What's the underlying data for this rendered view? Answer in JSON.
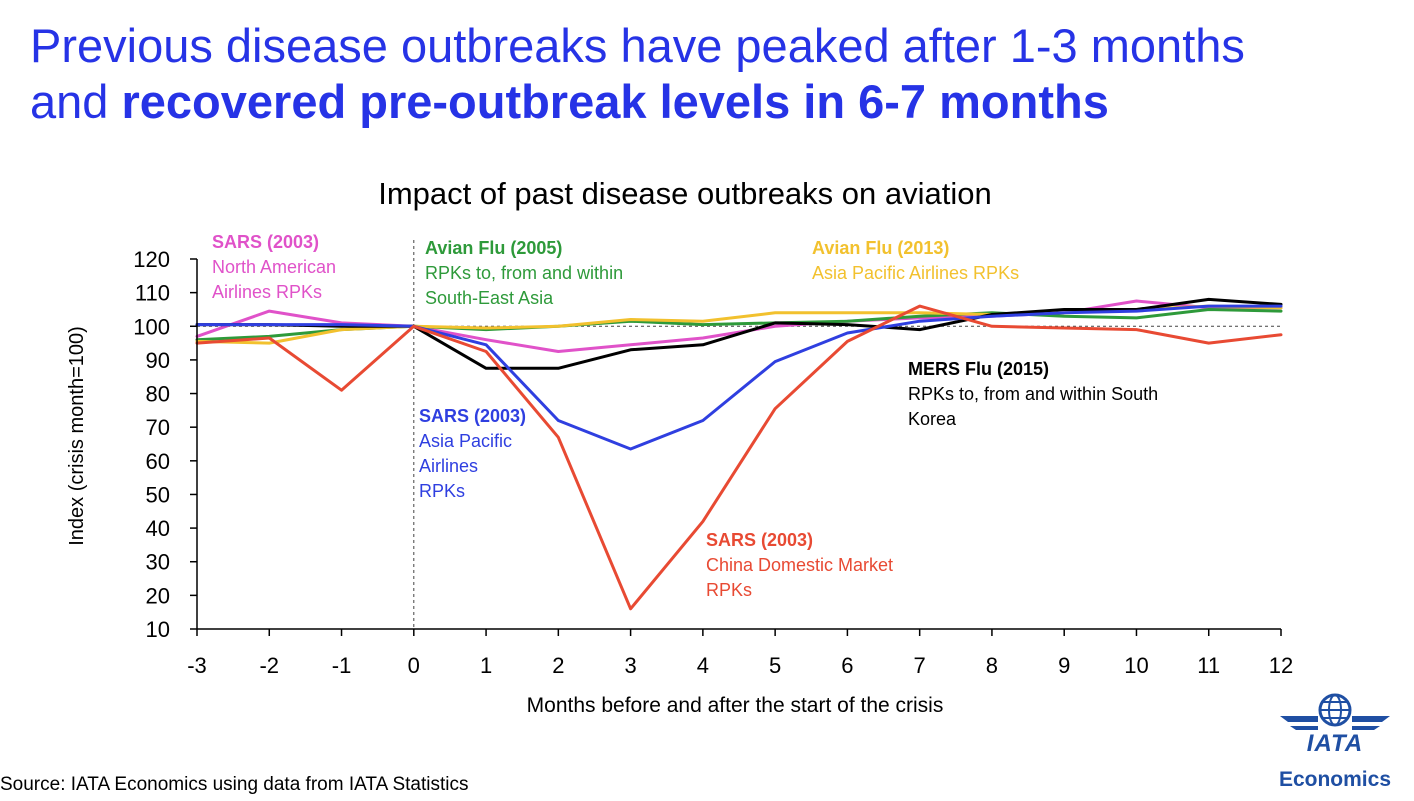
{
  "headline": {
    "line1": "Previous disease outbreaks have peaked after 1-3 months",
    "line2_prefix": "and ",
    "line2_bold": "recovered pre-outbreak levels in 6-7 months"
  },
  "source": "Source: IATA Economics using data from IATA Statistics",
  "logo": {
    "text": "IATA",
    "subtext": "Economics",
    "icon": "globe-wings-icon",
    "color": "#1f4fa3"
  },
  "chart_data": {
    "type": "line",
    "title": "Impact of past disease outbreaks on aviation",
    "xlabel": "Months before and after the start of the crisis",
    "ylabel": "Index (crisis month=100)",
    "xlim": [
      -3,
      12
    ],
    "ylim": [
      10,
      120
    ],
    "xticks": [
      -3,
      -2,
      -1,
      0,
      1,
      2,
      3,
      4,
      5,
      6,
      7,
      8,
      9,
      10,
      11,
      12
    ],
    "yticks": [
      10,
      20,
      30,
      40,
      50,
      60,
      70,
      80,
      90,
      100,
      110,
      120
    ],
    "reference_lines": {
      "vertical_x": 0,
      "horizontal_y": 100,
      "style": "dashed"
    },
    "grid": false,
    "x": [
      -3,
      -2,
      -1,
      0,
      1,
      2,
      3,
      4,
      5,
      6,
      7,
      8,
      9,
      10,
      11,
      12
    ],
    "series": [
      {
        "name": "SARS (2003)",
        "sublabel": "North American Airlines RPKs",
        "color": "#e052c9",
        "values": [
          97,
          104.5,
          101,
          100,
          96,
          92.5,
          94.5,
          96.5,
          100,
          101.5,
          102.5,
          103,
          104,
          107.5,
          105.5,
          105.5
        ]
      },
      {
        "name": "Avian Flu (2005)",
        "sublabel": "RPKs to, from and within South-East Asia",
        "color": "#2e9a3a",
        "values": [
          96,
          97,
          99,
          100,
          99,
          100,
          101.5,
          100.5,
          101,
          101.5,
          103,
          104,
          103,
          102.5,
          105,
          104.5
        ]
      },
      {
        "name": "Avian Flu (2013)",
        "sublabel": "Asia Pacific Airlines RPKs",
        "color": "#f2c12e",
        "values": [
          95.5,
          95,
          99,
          100,
          99.5,
          100,
          102,
          101.5,
          104,
          104,
          104,
          103.5,
          104,
          105,
          106,
          105.5
        ]
      },
      {
        "name": "MERS Flu (2015)",
        "sublabel": "RPKs to, from and within South Korea",
        "color": "#000000",
        "values": [
          100.5,
          100.5,
          100,
          100,
          87.5,
          87.5,
          93,
          94.5,
          101,
          100.5,
          99,
          103.5,
          105,
          105,
          108,
          106.5
        ]
      },
      {
        "name": "SARS (2003)",
        "sublabel": "Asia Pacific Airlines RPKs",
        "color": "#2f3fe0",
        "values": [
          100.5,
          100.5,
          100.5,
          100,
          94.5,
          72,
          63.5,
          72,
          89.5,
          98,
          101.5,
          103,
          104,
          104.5,
          106,
          106
        ]
      },
      {
        "name": "SARS (2003)",
        "sublabel": "China Domestic Market RPKs",
        "color": "#e84a33",
        "values": [
          95,
          96.5,
          81,
          100,
          92.5,
          67,
          16,
          42,
          75.5,
          95.5,
          106,
          100,
          99.5,
          99,
          95,
          97.5
        ]
      }
    ],
    "annotations": [
      {
        "title": "SARS (2003)",
        "lines": [
          "North American",
          "Airlines RPKs"
        ],
        "color": "#e052c9"
      },
      {
        "title": "Avian Flu (2005)",
        "lines": [
          "RPKs to, from and within",
          "South-East Asia"
        ],
        "color": "#2e9a3a"
      },
      {
        "title": "Avian Flu (2013)",
        "lines": [
          "Asia Pacific Airlines RPKs"
        ],
        "color": "#f2c12e"
      },
      {
        "title": "MERS Flu (2015)",
        "lines": [
          "RPKs to, from and within South",
          "Korea"
        ],
        "color": "#000000"
      },
      {
        "title": "SARS (2003)",
        "lines": [
          "Asia Pacific",
          "Airlines",
          "RPKs"
        ],
        "color": "#2f3fe0"
      },
      {
        "title": "SARS (2003)",
        "lines": [
          "China Domestic Market",
          "RPKs"
        ],
        "color": "#e84a33"
      }
    ]
  }
}
